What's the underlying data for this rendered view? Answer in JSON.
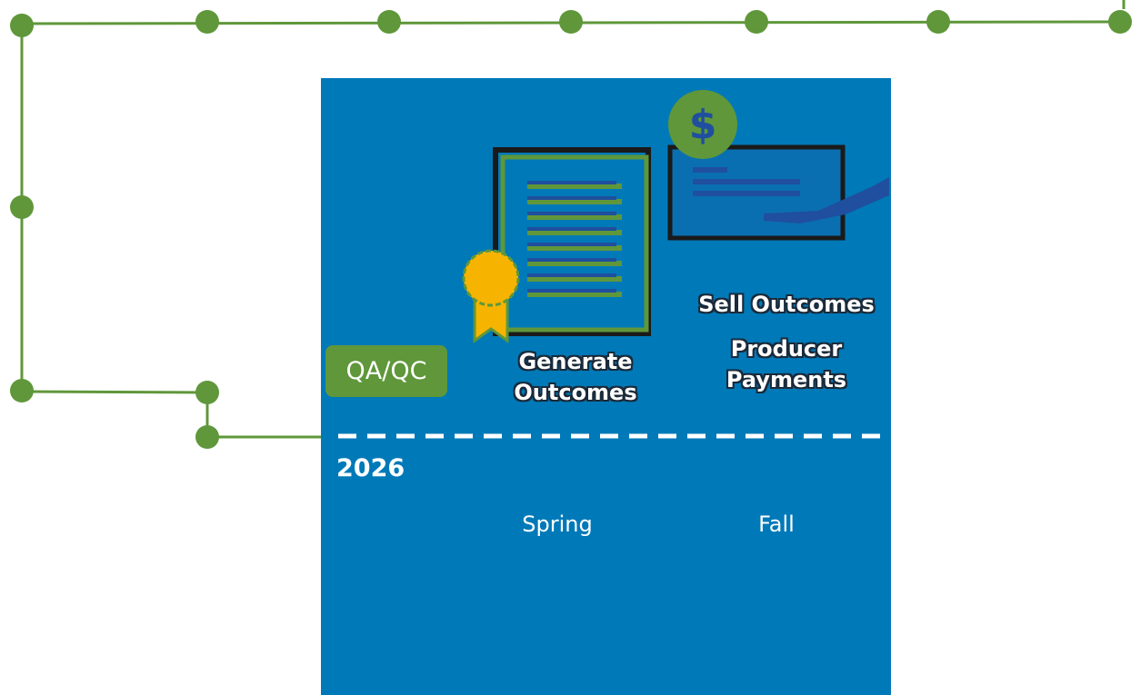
{
  "labels": {
    "qa_qc": "QA/QC",
    "generate_outcomes": "Generate Outcomes",
    "sell_outcomes": "Sell Outcomes",
    "producer_payments": "Producer Payments",
    "year": "2026",
    "spring": "Spring",
    "fall": "Fall"
  }
}
